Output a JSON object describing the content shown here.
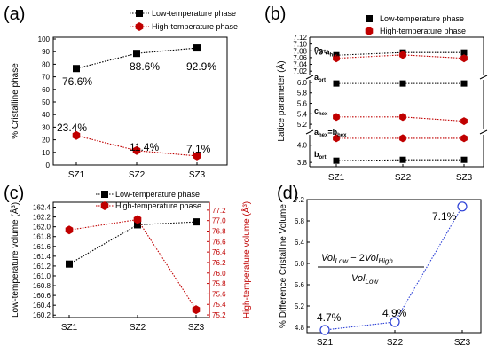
{
  "chart_data": [
    {
      "panel": "(a)",
      "type": "line",
      "categories": [
        "SZ1",
        "SZ2",
        "SZ3"
      ],
      "ylabel": "% Cristalline phase",
      "ylim": [
        0,
        100
      ],
      "yticks": [
        "0",
        "10",
        "20",
        "30",
        "40",
        "50",
        "60",
        "70",
        "80",
        "90",
        "100"
      ],
      "legend": [
        "Low-temperature phase",
        "High-temperature  phase"
      ],
      "series": [
        {
          "name": "Low-temperature phase",
          "values": [
            76.6,
            88.6,
            92.9
          ],
          "color": "#000000",
          "marker": "square"
        },
        {
          "name": "High-temperature  phase",
          "values": [
            23.4,
            11.4,
            7.1
          ],
          "color": "#c00000",
          "marker": "hexagon"
        }
      ],
      "annotations": [
        "76.6%",
        "88.6%",
        "92.9%",
        "23.4%",
        "11.4%",
        "7.1%"
      ]
    },
    {
      "panel": "(b)",
      "type": "line",
      "categories": [
        "SZ1",
        "SZ2",
        "SZ3"
      ],
      "ylabel": "Latice parameter (Å)",
      "yticks_top": [
        "7.02",
        "7.04",
        "7.06",
        "7.08",
        "7.10",
        "7.12"
      ],
      "yticks_mid": [
        "5.2",
        "5.4",
        "5.6",
        "5.8",
        "6.0"
      ],
      "yticks_bot": [
        "3.8",
        "4.0"
      ],
      "legend": [
        "Low-temperature phase",
        "High-temperature phase"
      ],
      "series": [
        {
          "name": "c_ort",
          "label": "c",
          "sub": "ort",
          "values": [
            7.067,
            7.075,
            7.075
          ],
          "color": "#000000",
          "marker": "square"
        },
        {
          "name": "√3 a_hex",
          "label": "√3 a",
          "sub": "hex",
          "values": [
            7.058,
            7.068,
            7.058
          ],
          "color": "#c00000",
          "marker": "hexagon"
        },
        {
          "name": "a_ort",
          "label": "a",
          "sub": "ort",
          "values": [
            5.98,
            5.98,
            5.98
          ],
          "color": "#000000",
          "marker": "square"
        },
        {
          "name": "c_hex",
          "label": "c",
          "sub": "hex",
          "values": [
            5.34,
            5.34,
            5.26
          ],
          "color": "#c00000",
          "marker": "hexagon"
        },
        {
          "name": "a_hex=b_hex",
          "label": "a",
          "sub": "hex",
          "label2": "=b",
          "sub2": "hex",
          "values": [
            4.08,
            4.08,
            4.08
          ],
          "color": "#c00000",
          "marker": "hexagon"
        },
        {
          "name": "b_ort",
          "label": "b",
          "sub": "ort",
          "values": [
            3.82,
            3.83,
            3.83
          ],
          "color": "#000000",
          "marker": "square"
        }
      ]
    },
    {
      "panel": "(c)",
      "type": "line",
      "categories": [
        "SZ1",
        "SZ2",
        "SZ3"
      ],
      "ylabel": "Low-temperature volume (Å³)",
      "ylabel2": "High-temperature volume (Å³)",
      "ylim": [
        160.15,
        162.5
      ],
      "ylim2": [
        75.15,
        77.35
      ],
      "yticks": [
        "160.2",
        "160.4",
        "160.6",
        "160.8",
        "161.0",
        "161.2",
        "161.4",
        "161.6",
        "161.8",
        "162.0",
        "162.2",
        "162.4"
      ],
      "yticks2": [
        "75.2",
        "75.4",
        "75.6",
        "75.8",
        "76.0",
        "76.2",
        "76.4",
        "76.6",
        "76.8",
        "77.0",
        "77.2"
      ],
      "legend": [
        "Low-temperature phase",
        "High-temperature  phase"
      ],
      "series": [
        {
          "name": "Low-temperature phase",
          "axis": "left",
          "values": [
            161.24,
            162.04,
            162.1
          ],
          "color": "#000000",
          "marker": "square"
        },
        {
          "name": "High-temperature  phase",
          "axis": "right",
          "values": [
            76.82,
            77.02,
            75.3
          ],
          "color": "#c00000",
          "marker": "hexagon"
        }
      ]
    },
    {
      "panel": "(d)",
      "type": "line",
      "categories": [
        "SZ1",
        "SZ2",
        "SZ3"
      ],
      "ylabel": "% Difference Cristalline Volume",
      "ylim": [
        4.7,
        7.2
      ],
      "yticks": [
        "4.8",
        "5.2",
        "5.6",
        "6.0",
        "6.4",
        "6.8",
        "7.2"
      ],
      "series": [
        {
          "values": [
            4.75,
            4.9,
            7.07
          ],
          "color": "#2b3fd6",
          "marker": "circle"
        }
      ],
      "annotations": [
        "4.7%",
        "4.9%",
        "7.1%"
      ],
      "formula": {
        "num_a": "Vol",
        "num_a_sub": "Low",
        "num_mid": " − 2",
        "num_b": "Vol",
        "num_b_sub": "High",
        "den": "Vol",
        "den_sub": "Low"
      }
    }
  ]
}
